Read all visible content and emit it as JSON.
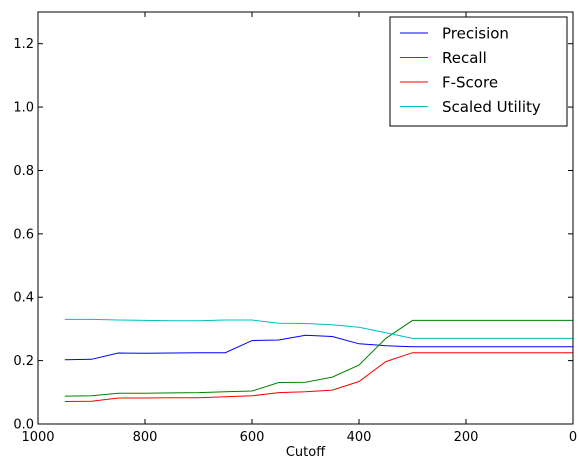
{
  "chart_data": {
    "type": "line",
    "title": "",
    "xlabel": "Cutoff",
    "ylabel": "",
    "xlim": [
      1000,
      0
    ],
    "ylim": [
      0,
      1.3
    ],
    "x_reversed": true,
    "xticks": [
      1000,
      800,
      600,
      400,
      200,
      0
    ],
    "xtick_labels": [
      "1000",
      "800",
      "600",
      "400",
      "200",
      "0"
    ],
    "yticks": [
      0.0,
      0.2,
      0.4,
      0.6,
      0.8,
      1.0,
      1.2
    ],
    "ytick_labels": [
      "0.0",
      "0.2",
      "0.4",
      "0.6",
      "0.8",
      "1.0",
      "1.2"
    ],
    "grid": false,
    "legend_position": "top-right",
    "x": [
      950,
      900,
      850,
      800,
      750,
      700,
      650,
      600,
      550,
      500,
      450,
      400,
      350,
      300,
      250,
      200,
      150,
      100,
      50,
      0
    ],
    "series": [
      {
        "name": "Precision",
        "color": "#0000ff",
        "values": [
          0.203,
          0.204,
          0.224,
          0.223,
          0.224,
          0.225,
          0.225,
          0.263,
          0.265,
          0.28,
          0.276,
          0.253,
          0.247,
          0.244,
          0.244,
          0.244,
          0.244,
          0.244,
          0.244,
          0.244
        ]
      },
      {
        "name": "Recall",
        "color": "#008000",
        "values": [
          0.088,
          0.089,
          0.097,
          0.097,
          0.098,
          0.099,
          0.102,
          0.104,
          0.131,
          0.132,
          0.148,
          0.186,
          0.27,
          0.327,
          0.327,
          0.327,
          0.327,
          0.327,
          0.327,
          0.327
        ]
      },
      {
        "name": "F-Score",
        "color": "#ff0000",
        "values": [
          0.071,
          0.072,
          0.082,
          0.082,
          0.083,
          0.083,
          0.086,
          0.089,
          0.099,
          0.102,
          0.107,
          0.134,
          0.197,
          0.225,
          0.225,
          0.225,
          0.225,
          0.225,
          0.225,
          0.225
        ]
      },
      {
        "name": "Scaled Utility",
        "color": "#00bfbf",
        "values": [
          0.33,
          0.33,
          0.328,
          0.327,
          0.326,
          0.326,
          0.328,
          0.328,
          0.318,
          0.317,
          0.313,
          0.305,
          0.288,
          0.27,
          0.27,
          0.27,
          0.27,
          0.27,
          0.27,
          0.27
        ]
      }
    ]
  }
}
